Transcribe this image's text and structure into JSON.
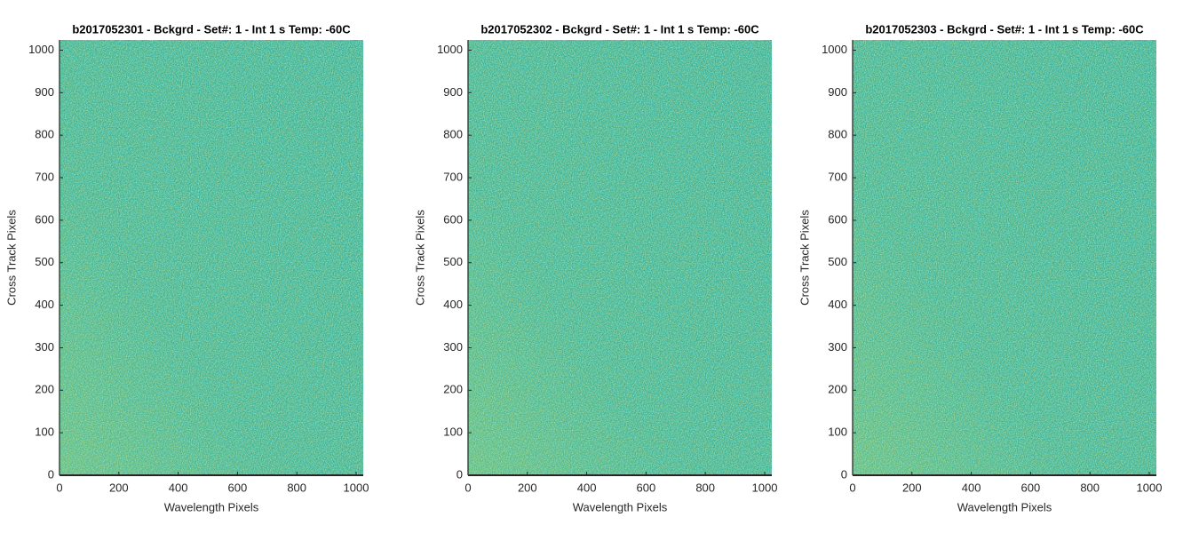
{
  "chart_data": [
    {
      "type": "heatmap",
      "title": "b2017052301 - Bckgrd - Set#: 1 - Int 1 s Temp: -60C",
      "xlabel": "Wavelength Pixels",
      "ylabel": "Cross Track Pixels",
      "xlim": [
        0,
        1024
      ],
      "ylim": [
        0,
        1024
      ],
      "xticks": [
        0,
        200,
        400,
        600,
        800,
        1000
      ],
      "yticks": [
        0,
        100,
        200,
        300,
        400,
        500,
        600,
        700,
        800,
        900,
        1000
      ]
    },
    {
      "type": "heatmap",
      "title": "b2017052302 - Bckgrd - Set#: 1 - Int 1 s Temp: -60C",
      "xlabel": "Wavelength Pixels",
      "ylabel": "Cross Track Pixels",
      "xlim": [
        0,
        1024
      ],
      "ylim": [
        0,
        1024
      ],
      "xticks": [
        0,
        200,
        400,
        600,
        800,
        1000
      ],
      "yticks": [
        0,
        100,
        200,
        300,
        400,
        500,
        600,
        700,
        800,
        900,
        1000
      ]
    },
    {
      "type": "heatmap",
      "title": "b2017052303 - Bckgrd - Set#: 1 - Int 1 s Temp: -60C",
      "xlabel": "Wavelength Pixels",
      "ylabel": "Cross Track Pixels",
      "xlim": [
        0,
        1024
      ],
      "ylim": [
        0,
        1024
      ],
      "xticks": [
        0,
        200,
        400,
        600,
        800,
        1000
      ],
      "yticks": [
        0,
        100,
        200,
        300,
        400,
        500,
        600,
        700,
        800,
        900,
        1000
      ]
    }
  ]
}
